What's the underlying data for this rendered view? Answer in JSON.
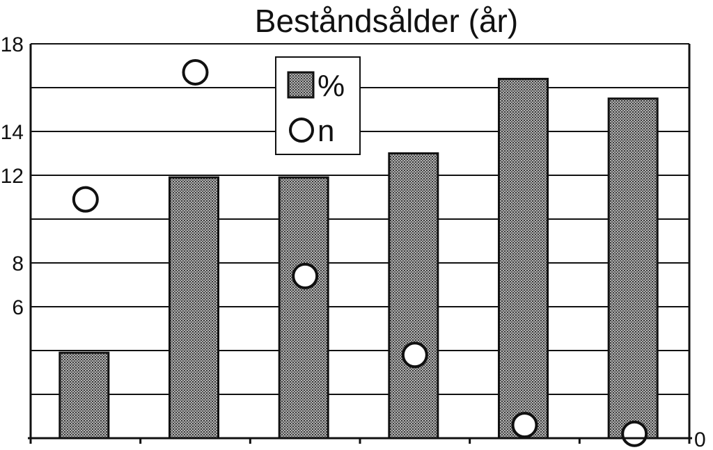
{
  "chart_data": {
    "type": "bar",
    "title": "Beståndsålder (år)",
    "xlabel": "",
    "ylabel": "",
    "ylim": [
      0,
      18
    ],
    "y_tick_labels": [
      "18",
      "14",
      "12",
      "8",
      "6"
    ],
    "y_tick_values": [
      18,
      14,
      12,
      8,
      6
    ],
    "right_axis_label": "0",
    "grid": true,
    "legend_position": "top-center",
    "categories": [
      "",
      "",
      "",
      "",
      "",
      ""
    ],
    "series": [
      {
        "name": "%",
        "kind": "bar",
        "values": [
          3.9,
          11.9,
          11.9,
          13.0,
          16.4,
          15.5
        ]
      },
      {
        "name": "n",
        "kind": "scatter",
        "values": [
          10.9,
          16.7,
          7.4,
          3.8,
          0.6,
          0.2
        ]
      }
    ],
    "colors": {
      "bar_fill": "#8f8f8f",
      "ink": "#111111",
      "point_fill": "#ffffff"
    }
  }
}
